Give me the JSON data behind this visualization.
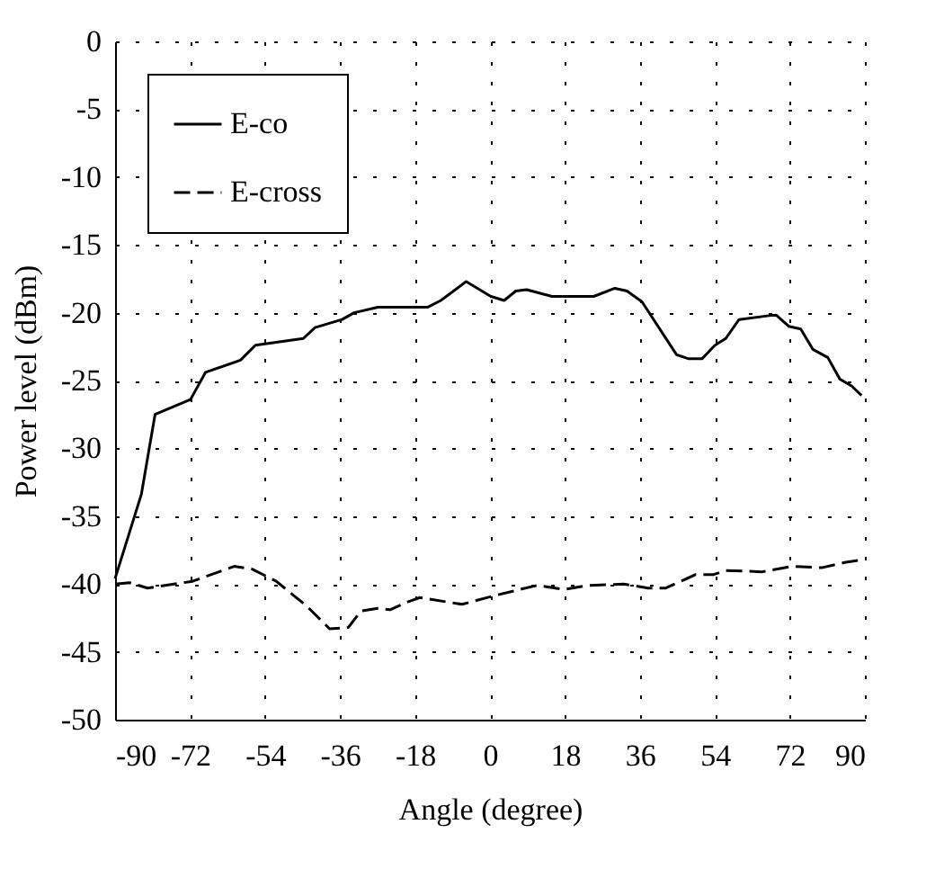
{
  "chart_data": {
    "type": "line",
    "xlabel": "Angle (degree)",
    "ylabel": "Power level (dBm)",
    "xlim": [
      -90,
      90
    ],
    "xticks": [
      -90,
      -72,
      -54,
      -36,
      -18,
      0,
      18,
      36,
      54,
      72,
      90
    ],
    "ylim": [
      -50,
      0
    ],
    "yticks": [
      -50,
      -45,
      -40,
      -35,
      -30,
      -25,
      -20,
      -15,
      -10,
      -5,
      0
    ],
    "grid": true,
    "legend": "top left",
    "series": [
      {
        "name": "E-co",
        "color": "#000000",
        "line_style": "solid",
        "x": [
          -90,
          -83.7,
          -80.4,
          -71.9,
          -68.3,
          -59.9,
          -56.3,
          -44.8,
          -42,
          -35.5,
          -32.6,
          -26.9,
          -15,
          -11.8,
          -5.7,
          0.2,
          3.4,
          6.2,
          8.8,
          14.9,
          24.9,
          30,
          32.9,
          36.5,
          44.8,
          47.7,
          50.9,
          54,
          56.6,
          59.8,
          67.4,
          68.8,
          71.7,
          74.6,
          77.5,
          81.1,
          84,
          86.8,
          89.2
        ],
        "values": [
          -39.6,
          -33.4,
          -27.5,
          -26.4,
          -24.4,
          -23.5,
          -22.4,
          -21.9,
          -21.1,
          -20.5,
          -20,
          -19.6,
          -19.6,
          -19.1,
          -17.7,
          -18.8,
          -19.1,
          -18.4,
          -18.3,
          -18.8,
          -18.8,
          -18.2,
          -18.4,
          -19.2,
          -23.1,
          -23.4,
          -23.4,
          -22.4,
          -21.9,
          -20.5,
          -20.2,
          -20.2,
          -21,
          -21.2,
          -22.7,
          -23.3,
          -24.9,
          -25.4,
          -26.1
        ]
      },
      {
        "name": "E-cross",
        "color": "#000000",
        "line_style": "dashed",
        "x": [
          -90,
          -86.5,
          -82.2,
          -71.4,
          -61.4,
          -57.1,
          -51.3,
          -44.1,
          -38.5,
          -34,
          -31,
          -27,
          -24,
          -19.6,
          -16.8,
          -6.7,
          0.5,
          11.3,
          17.8,
          23.5,
          32.1,
          37.9,
          42.2,
          49.4,
          53.7,
          56.6,
          65.3,
          72.4,
          79.6,
          85.4,
          89.7
        ],
        "values": [
          -40,
          -39.9,
          -40.3,
          -39.8,
          -38.7,
          -38.9,
          -39.8,
          -41.6,
          -43.3,
          -43.2,
          -42,
          -41.8,
          -41.9,
          -41.3,
          -41,
          -41.5,
          -40.9,
          -40.1,
          -40.4,
          -40.1,
          -40,
          -40.3,
          -40.3,
          -39.3,
          -39.3,
          -39,
          -39.1,
          -38.7,
          -38.8,
          -38.4,
          -38.2
        ]
      }
    ]
  }
}
